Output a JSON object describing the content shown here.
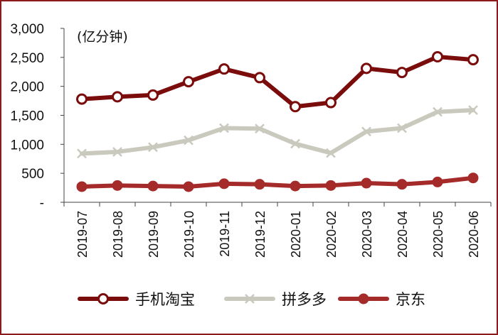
{
  "chart_data": {
    "type": "line",
    "unit_label": "(亿分钟)",
    "categories": [
      "2019-07",
      "2019-08",
      "2019-09",
      "2019-10",
      "2019-11",
      "2019-12",
      "2020-01",
      "2020-02",
      "2020-03",
      "2020-04",
      "2020-05",
      "2020-06"
    ],
    "series": [
      {
        "name": "手机淘宝",
        "color": "#7B0C0C",
        "marker": "hollow-circle",
        "values": [
          1780,
          1820,
          1850,
          2080,
          2300,
          2150,
          1650,
          1720,
          2310,
          2240,
          2510,
          2460
        ]
      },
      {
        "name": "拼多多",
        "color": "#C9C9BE",
        "marker": "x",
        "values": [
          840,
          870,
          950,
          1070,
          1280,
          1270,
          1010,
          850,
          1220,
          1280,
          1560,
          1590
        ]
      },
      {
        "name": "京东",
        "color": "#A52A2A",
        "marker": "filled-circle",
        "values": [
          270,
          290,
          280,
          270,
          320,
          310,
          280,
          290,
          330,
          310,
          350,
          420
        ]
      }
    ],
    "yticks": [
      {
        "value": 0,
        "label": "-"
      },
      {
        "value": 500,
        "label": "500"
      },
      {
        "value": 1000,
        "label": "1,000"
      },
      {
        "value": 1500,
        "label": "1,500"
      },
      {
        "value": 2000,
        "label": "2,000"
      },
      {
        "value": 2500,
        "label": "2,500"
      },
      {
        "value": 3000,
        "label": "3,000"
      }
    ],
    "ylim": [
      0,
      3000
    ],
    "grid": false,
    "legend_position": "bottom",
    "frame_color": "#8B1A1A"
  }
}
